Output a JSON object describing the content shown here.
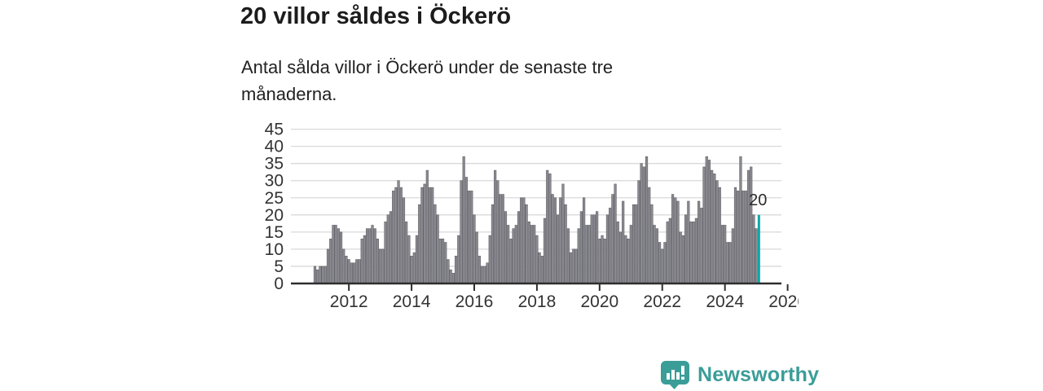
{
  "header": {
    "title": "20 villor såldes i Öckerö",
    "subtitle": "Antal sålda villor i Öckerö under de senaste tre månaderna."
  },
  "branding": {
    "name": "Newsworthy",
    "logo_icon": "bar-chart-speech-bubble-icon",
    "color": "#3b9d98"
  },
  "chart_data": {
    "type": "bar",
    "title": "20 villor såldes i Öckerö",
    "xlabel": "",
    "ylabel": "",
    "freq": "monthly",
    "x_start": "2011-12",
    "x_end": "2026-02",
    "ylim": [
      0,
      45
    ],
    "yticks": [
      0,
      5,
      10,
      15,
      20,
      25,
      30,
      35,
      40,
      45
    ],
    "xticks": [
      "2012",
      "2014",
      "2016",
      "2018",
      "2020",
      "2022",
      "2024",
      "2026"
    ],
    "grid": true,
    "bar_color": "#8a8a90",
    "bar_edge_color": "#63636a",
    "grid_color": "#d9d9d9",
    "axis_color": "#2e2e2e",
    "label_color": "#333333",
    "highlight": {
      "position": "last",
      "value": 20,
      "label": "20",
      "color": "#0ba8a8"
    },
    "values": [
      5,
      4,
      5,
      5,
      5,
      10,
      13,
      17,
      17,
      16,
      15,
      10,
      8,
      7,
      6,
      6,
      7,
      7,
      13,
      14,
      16,
      16,
      17,
      16,
      13,
      10,
      10,
      18,
      20,
      21,
      27,
      28,
      30,
      28,
      25,
      18,
      14,
      8,
      9,
      14,
      23,
      28,
      29,
      33,
      28,
      28,
      23,
      20,
      13,
      13,
      12,
      7,
      4,
      3,
      8,
      14,
      30,
      37,
      31,
      27,
      27,
      20,
      15,
      8,
      5,
      5,
      6,
      14,
      23,
      33,
      30,
      26,
      26,
      21,
      17,
      13,
      16,
      17,
      21,
      25,
      25,
      23,
      18,
      17,
      17,
      14,
      9,
      8,
      19,
      33,
      32,
      26,
      25,
      20,
      25,
      29,
      23,
      16,
      9,
      10,
      10,
      16,
      21,
      25,
      17,
      17,
      20,
      20,
      21,
      13,
      14,
      13,
      20,
      22,
      26,
      29,
      18,
      15,
      24,
      14,
      13,
      17,
      23,
      23,
      30,
      35,
      34,
      37,
      28,
      23,
      17,
      16,
      12,
      10,
      12,
      18,
      19,
      26,
      25,
      24,
      15,
      14,
      20,
      24,
      18,
      18,
      19,
      24,
      22,
      34,
      37,
      36,
      33,
      32,
      30,
      28,
      17,
      17,
      12,
      12,
      16,
      28,
      27,
      37,
      27,
      27,
      33,
      34,
      20,
      16,
      20
    ]
  }
}
